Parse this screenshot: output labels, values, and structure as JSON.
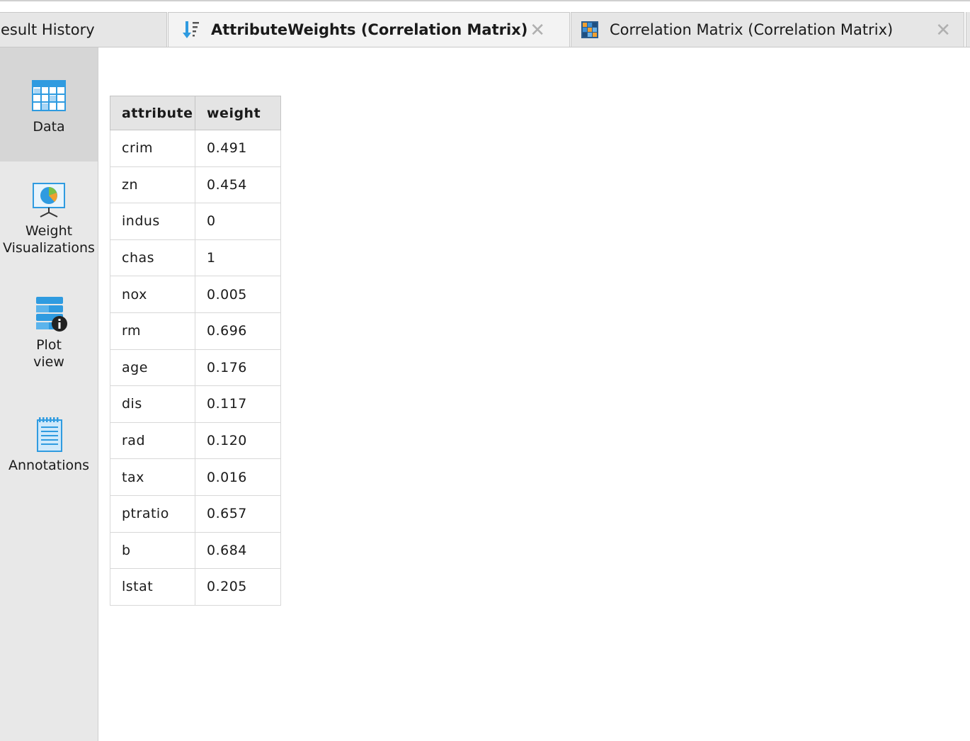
{
  "tabs": [
    {
      "label": "esult History",
      "icon": "none"
    },
    {
      "label": "AttributeWeights (Correlation Matrix)",
      "icon": "sort-weights-icon",
      "active": true
    },
    {
      "label": "Correlation Matrix (Correlation Matrix)",
      "icon": "correlation-matrix-icon"
    }
  ],
  "sidebar": {
    "items": [
      {
        "label": "Data",
        "icon": "table-icon",
        "selected": true
      },
      {
        "label_line1": "Weight",
        "label_line2": "Visualizations",
        "icon": "presentation-chart-icon"
      },
      {
        "label_line1": "Plot",
        "label_line2": "view",
        "icon": "database-info-icon"
      },
      {
        "label": "Annotations",
        "icon": "notepad-icon"
      }
    ]
  },
  "table": {
    "headers": [
      "attribute",
      "weight"
    ],
    "rows": [
      [
        "crim",
        "0.491"
      ],
      [
        "zn",
        "0.454"
      ],
      [
        "indus",
        "0"
      ],
      [
        "chas",
        "1"
      ],
      [
        "nox",
        "0.005"
      ],
      [
        "rm",
        "0.696"
      ],
      [
        "age",
        "0.176"
      ],
      [
        "dis",
        "0.117"
      ],
      [
        "rad",
        "0.120"
      ],
      [
        "tax",
        "0.016"
      ],
      [
        "ptratio",
        "0.657"
      ],
      [
        "b",
        "0.684"
      ],
      [
        "lstat",
        "0.205"
      ]
    ]
  },
  "colors": {
    "accent_blue": "#2f9be0",
    "sidebar_bg": "#e8e8e8",
    "sidebar_selected": "#d6d6d6",
    "header_bg": "#e4e4e4"
  }
}
